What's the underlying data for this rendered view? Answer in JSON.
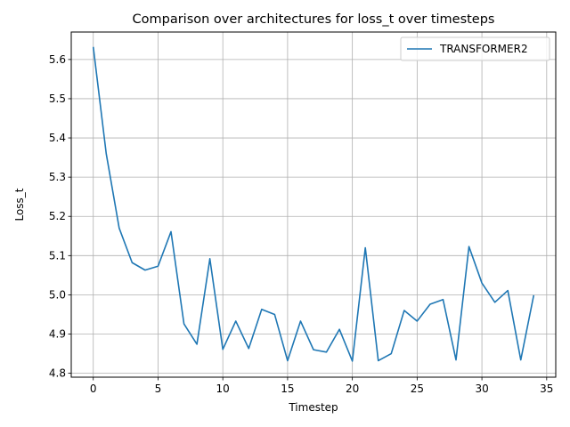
{
  "chart_data": {
    "type": "line",
    "title": "Comparison over architectures for loss_t over timesteps",
    "xlabel": "Timestep",
    "ylabel": "Loss_t",
    "xlim": [
      -1.7,
      35.7
    ],
    "ylim": [
      4.79,
      5.67
    ],
    "xticks": [
      0,
      5,
      10,
      15,
      20,
      25,
      30,
      35
    ],
    "yticks": [
      4.8,
      4.9,
      5.0,
      5.1,
      5.2,
      5.3,
      5.4,
      5.5,
      5.6
    ],
    "grid": true,
    "legend_position": "top-right",
    "x": [
      0,
      1,
      2,
      3,
      4,
      5,
      6,
      7,
      8,
      9,
      10,
      11,
      12,
      13,
      14,
      15,
      16,
      17,
      18,
      19,
      20,
      21,
      22,
      23,
      24,
      25,
      26,
      27,
      28,
      29,
      30,
      31,
      32,
      33,
      34
    ],
    "series": [
      {
        "name": "TRANSFORMER2",
        "color": "#1f77b4",
        "values": [
          5.632,
          5.36,
          5.17,
          5.082,
          5.063,
          5.073,
          5.161,
          4.926,
          4.874,
          5.092,
          4.861,
          4.933,
          4.863,
          4.963,
          4.95,
          4.832,
          4.933,
          4.86,
          4.854,
          4.912,
          4.831,
          5.12,
          4.832,
          4.85,
          4.96,
          4.933,
          4.976,
          4.988,
          4.834,
          5.123,
          5.03,
          4.981,
          5.011,
          4.834,
          4.999
        ]
      }
    ]
  }
}
